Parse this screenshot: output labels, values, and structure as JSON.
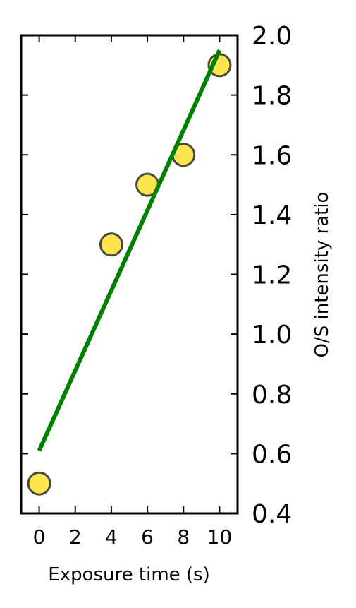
{
  "chart_data": {
    "type": "scatter",
    "title": "",
    "xlabel": "Exposure time (s)",
    "ylabel": "O/S intensity ratio",
    "xlim": [
      -1,
      11
    ],
    "ylim": [
      0.4,
      2.0
    ],
    "x_ticks": [
      "0",
      "2",
      "4",
      "6",
      "8",
      "10"
    ],
    "y_ticks": [
      "0.4",
      "0.6",
      "0.8",
      "1.0",
      "1.2",
      "1.4",
      "1.6",
      "1.8",
      "2.0"
    ],
    "y_axis_side": "right",
    "grid": false,
    "series": [
      {
        "kind": "scatter",
        "x": [
          0,
          4,
          6,
          8,
          10
        ],
        "y": [
          0.5,
          1.3,
          1.5,
          1.6,
          1.9
        ],
        "color": "#FFE44D",
        "edge_color": "#4a4a3a"
      },
      {
        "kind": "line",
        "x": [
          0,
          10
        ],
        "y": [
          0.61,
          1.95
        ],
        "color": "#008000"
      }
    ]
  }
}
